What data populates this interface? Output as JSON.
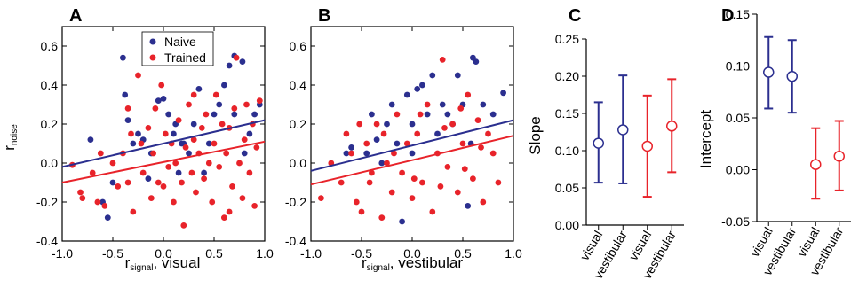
{
  "colors": {
    "naive": "#2b2f8f",
    "trained": "#e8232a",
    "axis": "#000000"
  },
  "chart_data": [
    {
      "id": "A",
      "type": "scatter",
      "panel_label": "A",
      "xlabel_main": "r",
      "xlabel_sub": "signal",
      "xlabel_tail": ", visual",
      "ylabel_main": "r",
      "ylabel_sub": "noise",
      "xlim": [
        -1.0,
        1.0
      ],
      "ylim": [
        -0.4,
        0.7
      ],
      "xticks": [
        "-1.0",
        "-0.5",
        "0.0",
        "0.5",
        "1.0"
      ],
      "yticks": [
        "-0.4",
        "-0.2",
        "0.0",
        "0.2",
        "0.4",
        "0.6"
      ],
      "legend": {
        "position": "top-center",
        "entries": [
          "Naive",
          "Trained"
        ]
      },
      "series": [
        {
          "name": "Naive",
          "color_key": "naive",
          "fit": [
            [
              -1.0,
              -0.02
            ],
            [
              1.0,
              0.22
            ]
          ],
          "points": [
            [
              -0.72,
              0.12
            ],
            [
              -0.6,
              -0.2
            ],
            [
              -0.55,
              -0.28
            ],
            [
              -0.4,
              0.54
            ],
            [
              -0.38,
              0.35
            ],
            [
              -0.35,
              0.22
            ],
            [
              -0.3,
              0.1
            ],
            [
              -0.25,
              0.15
            ],
            [
              -0.2,
              0.12
            ],
            [
              -0.12,
              0.05
            ],
            [
              -0.05,
              0.32
            ],
            [
              0.0,
              0.33
            ],
            [
              0.05,
              0.25
            ],
            [
              0.1,
              0.15
            ],
            [
              0.12,
              0.2
            ],
            [
              0.18,
              0.1
            ],
            [
              0.2,
              0.1
            ],
            [
              0.25,
              0.05
            ],
            [
              0.3,
              0.2
            ],
            [
              0.35,
              0.38
            ],
            [
              0.45,
              0.1
            ],
            [
              0.5,
              0.25
            ],
            [
              0.55,
              0.3
            ],
            [
              0.6,
              0.4
            ],
            [
              0.65,
              0.5
            ],
            [
              0.7,
              0.55
            ],
            [
              0.78,
              0.52
            ],
            [
              0.8,
              0.05
            ],
            [
              0.85,
              0.15
            ],
            [
              0.9,
              0.25
            ],
            [
              0.95,
              0.3
            ],
            [
              -0.5,
              -0.1
            ],
            [
              -0.15,
              -0.08
            ],
            [
              0.4,
              -0.05
            ],
            [
              0.7,
              0.25
            ],
            [
              0.15,
              -0.05
            ]
          ]
        },
        {
          "name": "Trained",
          "color_key": "trained",
          "fit": [
            [
              -1.0,
              -0.1
            ],
            [
              1.0,
              0.11
            ]
          ],
          "points": [
            [
              -0.9,
              -0.01
            ],
            [
              -0.82,
              -0.15
            ],
            [
              -0.8,
              -0.18
            ],
            [
              -0.7,
              -0.05
            ],
            [
              -0.65,
              -0.2
            ],
            [
              -0.62,
              0.05
            ],
            [
              -0.58,
              -0.22
            ],
            [
              -0.5,
              0.0
            ],
            [
              -0.45,
              -0.12
            ],
            [
              -0.4,
              0.05
            ],
            [
              -0.35,
              -0.1
            ],
            [
              -0.32,
              0.15
            ],
            [
              -0.3,
              -0.25
            ],
            [
              -0.25,
              0.45
            ],
            [
              -0.22,
              0.1
            ],
            [
              -0.2,
              -0.05
            ],
            [
              -0.15,
              0.18
            ],
            [
              -0.12,
              -0.18
            ],
            [
              -0.1,
              0.05
            ],
            [
              -0.08,
              0.28
            ],
            [
              -0.05,
              -0.1
            ],
            [
              0.0,
              -0.12
            ],
            [
              0.02,
              0.15
            ],
            [
              0.05,
              -0.02
            ],
            [
              0.08,
              0.1
            ],
            [
              0.1,
              -0.2
            ],
            [
              0.12,
              0.0
            ],
            [
              0.15,
              0.22
            ],
            [
              0.18,
              -0.1
            ],
            [
              0.2,
              -0.32
            ],
            [
              0.22,
              0.08
            ],
            [
              0.25,
              0.3
            ],
            [
              0.28,
              -0.05
            ],
            [
              0.3,
              0.12
            ],
            [
              0.32,
              -0.15
            ],
            [
              0.35,
              0.05
            ],
            [
              0.38,
              0.18
            ],
            [
              0.4,
              -0.08
            ],
            [
              0.42,
              0.25
            ],
            [
              0.45,
              0.0
            ],
            [
              0.48,
              -0.2
            ],
            [
              0.5,
              0.1
            ],
            [
              0.52,
              0.35
            ],
            [
              0.55,
              -0.02
            ],
            [
              0.58,
              0.2
            ],
            [
              0.6,
              -0.28
            ],
            [
              0.62,
              0.05
            ],
            [
              0.65,
              0.18
            ],
            [
              0.68,
              -0.12
            ],
            [
              0.7,
              0.28
            ],
            [
              0.72,
              0.54
            ],
            [
              0.75,
              0.0
            ],
            [
              0.78,
              -0.18
            ],
            [
              0.8,
              0.12
            ],
            [
              0.82,
              0.3
            ],
            [
              0.85,
              -0.05
            ],
            [
              0.88,
              0.2
            ],
            [
              0.9,
              -0.22
            ],
            [
              0.92,
              0.08
            ],
            [
              0.95,
              0.32
            ],
            [
              -0.35,
              0.28
            ],
            [
              -0.02,
              0.4
            ],
            [
              0.3,
              0.35
            ],
            [
              0.65,
              -0.25
            ]
          ]
        }
      ]
    },
    {
      "id": "B",
      "type": "scatter",
      "panel_label": "B",
      "xlabel_main": "r",
      "xlabel_sub": "signal",
      "xlabel_tail": ", vestibular",
      "xlim": [
        -1.0,
        1.0
      ],
      "ylim": [
        -0.4,
        0.7
      ],
      "xticks": [
        "-1.0",
        "-0.5",
        "0.0",
        "0.5",
        "1.0"
      ],
      "yticks": [
        "-0.4",
        "-0.2",
        "0.0",
        "0.2",
        "0.4",
        "0.6"
      ],
      "series": [
        {
          "name": "Naive",
          "color_key": "naive",
          "fit": [
            [
              -1.0,
              -0.04
            ],
            [
              1.0,
              0.22
            ]
          ],
          "points": [
            [
              -0.65,
              0.05
            ],
            [
              -0.6,
              0.08
            ],
            [
              -0.45,
              0.05
            ],
            [
              -0.4,
              0.25
            ],
            [
              -0.35,
              0.12
            ],
            [
              -0.3,
              0.0
            ],
            [
              -0.25,
              0.2
            ],
            [
              -0.2,
              0.3
            ],
            [
              -0.1,
              -0.3
            ],
            [
              -0.05,
              0.35
            ],
            [
              0.0,
              0.2
            ],
            [
              0.05,
              0.38
            ],
            [
              0.1,
              0.4
            ],
            [
              0.15,
              0.25
            ],
            [
              0.2,
              0.45
            ],
            [
              0.25,
              0.15
            ],
            [
              0.3,
              0.3
            ],
            [
              0.35,
              0.25
            ],
            [
              0.4,
              0.2
            ],
            [
              0.5,
              0.3
            ],
            [
              0.55,
              -0.22
            ],
            [
              0.58,
              0.1
            ],
            [
              0.6,
              0.54
            ],
            [
              0.63,
              0.52
            ],
            [
              0.7,
              0.3
            ],
            [
              0.8,
              0.25
            ],
            [
              0.9,
              0.36
            ],
            [
              0.45,
              0.45
            ],
            [
              -0.15,
              0.1
            ],
            [
              0.0,
              0.05
            ]
          ]
        },
        {
          "name": "Trained",
          "color_key": "trained",
          "fit": [
            [
              -1.0,
              -0.11
            ],
            [
              1.0,
              0.14
            ]
          ],
          "points": [
            [
              -0.9,
              -0.18
            ],
            [
              -0.8,
              0.0
            ],
            [
              -0.7,
              -0.1
            ],
            [
              -0.6,
              0.05
            ],
            [
              -0.55,
              -0.2
            ],
            [
              -0.5,
              -0.25
            ],
            [
              -0.45,
              0.1
            ],
            [
              -0.4,
              -0.05
            ],
            [
              -0.35,
              0.2
            ],
            [
              -0.3,
              -0.28
            ],
            [
              -0.25,
              0.0
            ],
            [
              -0.2,
              -0.15
            ],
            [
              -0.15,
              0.25
            ],
            [
              -0.1,
              -0.05
            ],
            [
              -0.05,
              0.1
            ],
            [
              0.0,
              -0.18
            ],
            [
              0.05,
              0.15
            ],
            [
              0.1,
              -0.1
            ],
            [
              0.15,
              0.3
            ],
            [
              0.2,
              -0.25
            ],
            [
              0.25,
              0.05
            ],
            [
              0.3,
              0.53
            ],
            [
              0.35,
              -0.02
            ],
            [
              0.4,
              0.2
            ],
            [
              0.45,
              -0.15
            ],
            [
              0.5,
              0.1
            ],
            [
              0.55,
              0.35
            ],
            [
              0.6,
              -0.08
            ],
            [
              0.65,
              0.22
            ],
            [
              0.7,
              -0.2
            ],
            [
              0.75,
              0.15
            ],
            [
              0.8,
              0.05
            ],
            [
              0.85,
              -0.1
            ],
            [
              -0.65,
              0.15
            ],
            [
              -0.42,
              -0.1
            ],
            [
              -0.18,
              0.05
            ],
            [
              0.08,
              0.25
            ],
            [
              0.32,
              0.18
            ],
            [
              0.52,
              -0.03
            ],
            [
              0.68,
              0.08
            ],
            [
              -0.52,
              0.2
            ],
            [
              -0.28,
              0.15
            ],
            [
              0.02,
              -0.08
            ],
            [
              0.28,
              -0.12
            ],
            [
              0.48,
              0.28
            ]
          ]
        }
      ]
    },
    {
      "id": "C",
      "type": "errorbar",
      "panel_label": "C",
      "ylabel": "Slope",
      "ylim": [
        0.0,
        0.25
      ],
      "yticks": [
        "0.00",
        "0.05",
        "0.10",
        "0.15",
        "0.20",
        "0.25"
      ],
      "categories": [
        "visual",
        "vestibular",
        "visual",
        "vestibular"
      ],
      "values": [
        0.11,
        0.128,
        0.106,
        0.133
      ],
      "lower": [
        0.057,
        0.056,
        0.038,
        0.071
      ],
      "upper": [
        0.165,
        0.201,
        0.174,
        0.196
      ],
      "color_keys": [
        "naive",
        "naive",
        "trained",
        "trained"
      ]
    },
    {
      "id": "D",
      "type": "errorbar",
      "panel_label": "D",
      "ylabel": "Intercept",
      "ylim": [
        -0.05,
        0.15
      ],
      "yticks": [
        "-0.05",
        "0.00",
        "0.05",
        "0.10",
        "0.15"
      ],
      "categories": [
        "visual",
        "vestibular",
        "visual",
        "vestibular"
      ],
      "values": [
        0.094,
        0.09,
        0.005,
        0.013
      ],
      "lower": [
        0.059,
        0.055,
        -0.028,
        -0.02
      ],
      "upper": [
        0.128,
        0.125,
        0.04,
        0.047
      ],
      "color_keys": [
        "naive",
        "naive",
        "trained",
        "trained"
      ]
    }
  ]
}
